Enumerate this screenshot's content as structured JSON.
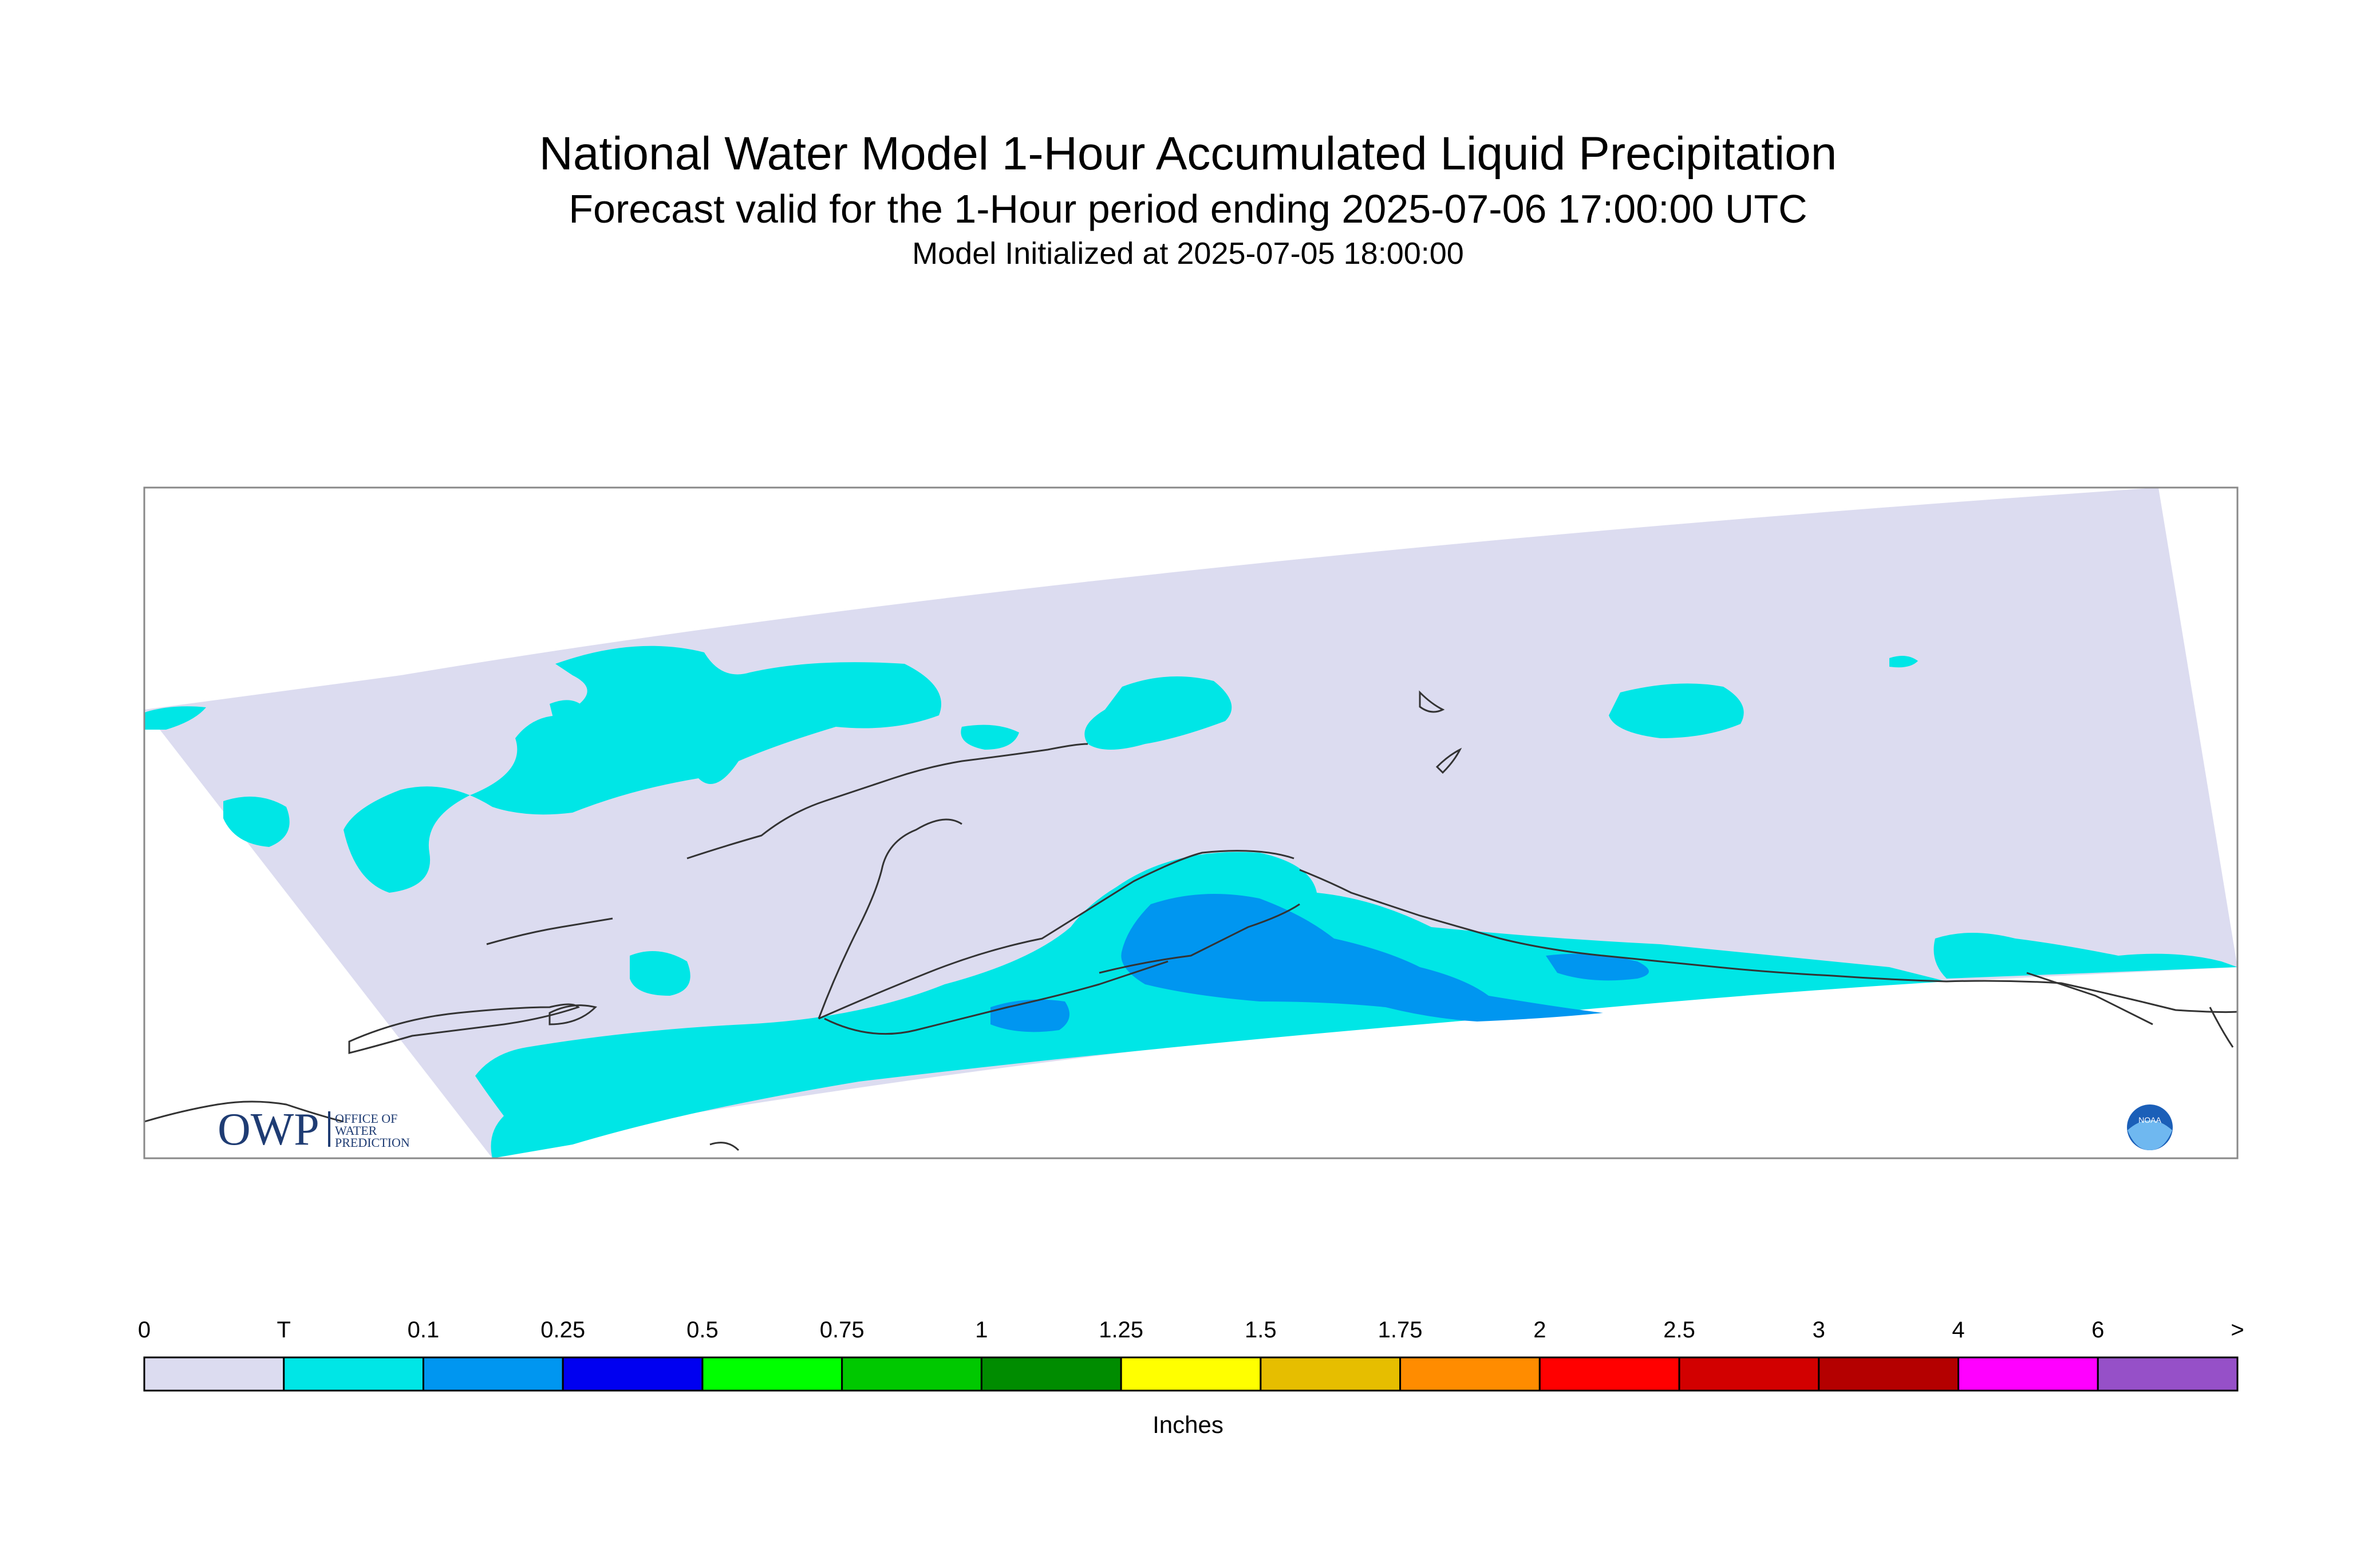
{
  "title": "National Water Model 1-Hour Accumulated Liquid Precipitation",
  "subtitle": "Forecast valid for the 1-Hour period ending 2025-07-06 17:00:00 UTC",
  "initialized": "Model Initialized at 2025-07-05 18:00:00",
  "colorbar": {
    "units": "Inches",
    "labels": [
      "0",
      "T",
      "0.1",
      "0.25",
      "0.5",
      "0.75",
      "1",
      "1.25",
      "1.5",
      "1.75",
      "2",
      "2.5",
      "3",
      "4",
      "6",
      ">"
    ],
    "colors": [
      "#dcdcf0",
      "#00e6e6",
      "#0096f0",
      "#0000f0",
      "#00ff00",
      "#00c800",
      "#008c00",
      "#ffff00",
      "#e6be00",
      "#ff8c00",
      "#ff0000",
      "#d20000",
      "#b40000",
      "#ff00ff",
      "#9650c8"
    ]
  },
  "logos": {
    "owp_letters": "OWP",
    "owp_line1": "OFFICE OF",
    "owp_line2": "WATER",
    "owp_line3": "PREDICTION",
    "noaa": "NOAA"
  },
  "map_colors": {
    "background": "#dcdcf0",
    "trace": "#00e6e6",
    "light_blue": "#0096f0",
    "coastline": "#333333"
  }
}
